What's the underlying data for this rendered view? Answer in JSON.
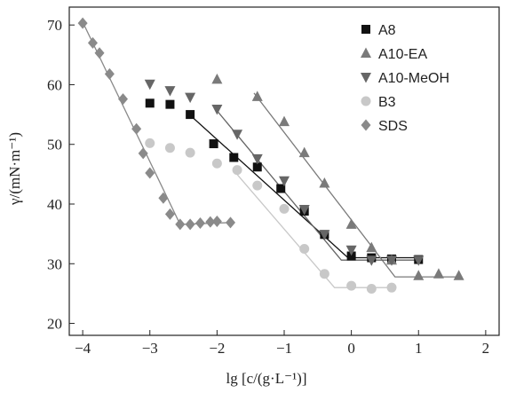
{
  "chart_data": {
    "type": "scatter",
    "xlabel": "lg [c/(g·L⁻¹)]",
    "ylabel": "γ/(mN·m⁻¹)",
    "xlim": [
      -4.2,
      2.2
    ],
    "ylim": [
      18,
      73
    ],
    "x_ticks": [
      -4,
      -3,
      -2,
      -1,
      0,
      1,
      2
    ],
    "y_ticks": [
      20,
      30,
      40,
      50,
      60,
      70
    ],
    "grid": false,
    "legend_position": "top-right",
    "series": [
      {
        "name": "A8",
        "marker": "square",
        "color": "#111111",
        "line_color": "#111111",
        "points": [
          [
            -3.0,
            56.9
          ],
          [
            -2.7,
            56.7
          ],
          [
            -2.4,
            55.0
          ],
          [
            -2.05,
            50.1
          ],
          [
            -1.75,
            47.8
          ],
          [
            -1.4,
            46.2
          ],
          [
            -1.05,
            42.6
          ],
          [
            -0.7,
            38.8
          ],
          [
            -0.4,
            34.9
          ],
          [
            0.0,
            31.3
          ],
          [
            0.3,
            31.0
          ],
          [
            0.6,
            30.8
          ],
          [
            1.0,
            30.7
          ]
        ],
        "fit_line": [
          [
            -2.45,
            55.4
          ],
          [
            -0.05,
            31.0
          ],
          [
            1.05,
            31.0
          ]
        ]
      },
      {
        "name": "A10-EA",
        "marker": "triangle-up",
        "color": "#7a7a7a",
        "line_color": "#7a7a7a",
        "points": [
          [
            -2.0,
            60.9
          ],
          [
            -1.4,
            58.0
          ],
          [
            -1.0,
            53.8
          ],
          [
            -0.7,
            48.6
          ],
          [
            -0.4,
            43.5
          ],
          [
            0.0,
            36.6
          ],
          [
            0.3,
            32.7
          ],
          [
            0.6,
            30.6
          ],
          [
            1.0,
            28.0
          ],
          [
            1.3,
            28.3
          ],
          [
            1.6,
            28.0
          ]
        ],
        "fit_line": [
          [
            -1.45,
            58.6
          ],
          [
            0.65,
            27.8
          ],
          [
            1.65,
            27.8
          ]
        ]
      },
      {
        "name": "A10-MeOH",
        "marker": "triangle-down",
        "color": "#666666",
        "line_color": "#666666",
        "points": [
          [
            -3.0,
            60.1
          ],
          [
            -2.7,
            59.0
          ],
          [
            -2.4,
            57.9
          ],
          [
            -2.0,
            55.9
          ],
          [
            -1.7,
            51.7
          ],
          [
            -1.4,
            47.6
          ],
          [
            -1.0,
            43.9
          ],
          [
            -0.7,
            39.1
          ],
          [
            -0.4,
            34.9
          ],
          [
            0.0,
            32.3
          ],
          [
            0.3,
            30.6
          ],
          [
            0.6,
            30.6
          ],
          [
            1.0,
            30.6
          ]
        ],
        "fit_line": [
          [
            -2.05,
            56.3
          ],
          [
            -0.15,
            30.6
          ],
          [
            1.05,
            30.6
          ]
        ]
      },
      {
        "name": "B3",
        "marker": "circle",
        "color": "#c8c8c8",
        "line_color": "#c8c8c8",
        "points": [
          [
            -3.0,
            50.2
          ],
          [
            -2.7,
            49.4
          ],
          [
            -2.4,
            48.6
          ],
          [
            -2.0,
            46.8
          ],
          [
            -1.7,
            45.7
          ],
          [
            -1.4,
            43.1
          ],
          [
            -1.0,
            39.2
          ],
          [
            -0.7,
            32.5
          ],
          [
            -0.4,
            28.3
          ],
          [
            0.0,
            26.3
          ],
          [
            0.3,
            25.8
          ],
          [
            0.6,
            26.0
          ]
        ],
        "fit_line": [
          [
            -1.75,
            45.6
          ],
          [
            -0.25,
            26.0
          ],
          [
            0.65,
            26.0
          ]
        ]
      },
      {
        "name": "SDS",
        "marker": "diamond",
        "color": "#8a8a8a",
        "line_color": "#8a8a8a",
        "points": [
          [
            -4.0,
            70.3
          ],
          [
            -3.85,
            67.0
          ],
          [
            -3.75,
            65.3
          ],
          [
            -3.6,
            61.8
          ],
          [
            -3.4,
            57.6
          ],
          [
            -3.2,
            52.6
          ],
          [
            -3.1,
            48.5
          ],
          [
            -3.0,
            45.2
          ],
          [
            -2.8,
            41.0
          ],
          [
            -2.7,
            38.3
          ],
          [
            -2.55,
            36.6
          ],
          [
            -2.4,
            36.6
          ],
          [
            -2.25,
            36.8
          ],
          [
            -2.1,
            37.0
          ],
          [
            -2.0,
            37.1
          ],
          [
            -1.8,
            36.9
          ]
        ],
        "fit_line": [
          [
            -4.0,
            70.5
          ],
          [
            -2.55,
            36.6
          ],
          [
            -1.8,
            36.9
          ]
        ]
      }
    ]
  }
}
